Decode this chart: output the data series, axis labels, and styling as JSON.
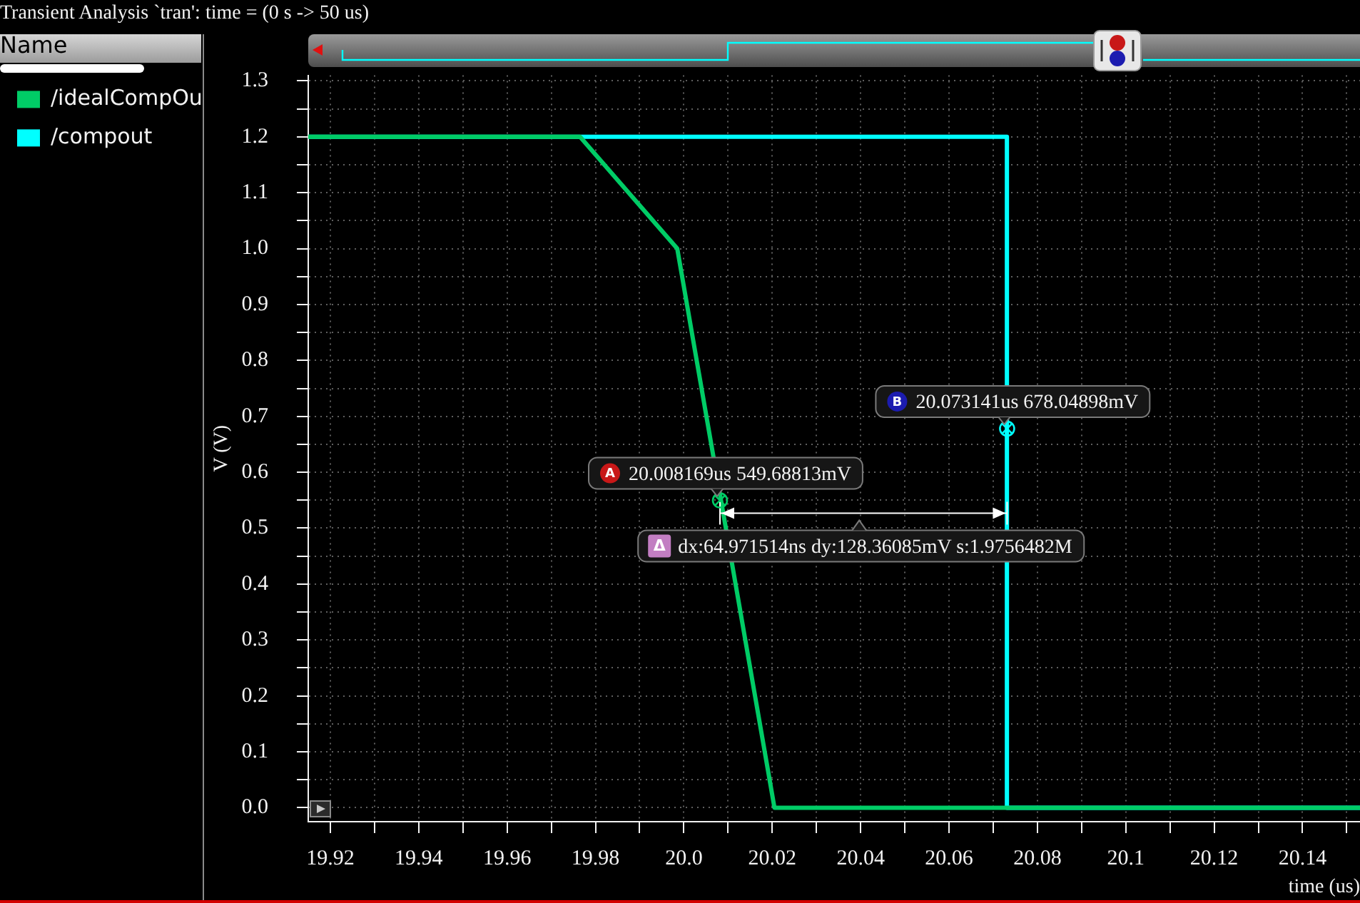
{
  "chart_data": {
    "type": "line",
    "title": "Transient Analysis `tran': time = (0 s -> 50 us)",
    "xlabel": "time (us)",
    "ylabel": "V (V)",
    "legend_title": "Name",
    "legend": "left",
    "grid": true,
    "series": [
      {
        "name": "/idealCompOu",
        "color": "#00cc66",
        "x": [
          19.915,
          19.9765,
          19.9985,
          20.0205,
          20.153
        ],
        "values": [
          1.2,
          1.2,
          1.0,
          0,
          0
        ]
      },
      {
        "name": "/compout",
        "color": "#00ffff",
        "x": [
          19.915,
          20.0731,
          20.0731,
          20.153
        ],
        "values": [
          1.2,
          1.2,
          0,
          0
        ]
      }
    ],
    "xlim": [
      19.915,
      20.153
    ],
    "xticks": [
      19.92,
      {
        "value": 19.93,
        "label": null
      },
      19.94,
      {
        "value": 19.95,
        "label": null
      },
      19.96,
      {
        "value": 19.97,
        "label": null
      },
      19.98,
      {
        "value": 19.99,
        "label": null
      },
      {
        "value": 20,
        "label": "20.0"
      },
      {
        "value": 20.01,
        "label": null
      },
      20.02,
      {
        "value": 20.03,
        "label": null
      },
      20.04,
      {
        "value": 20.05,
        "label": null
      },
      20.06,
      {
        "value": 20.07,
        "label": null
      },
      20.08,
      {
        "value": 20.09,
        "label": null
      },
      20.1,
      {
        "value": 20.11,
        "label": null
      },
      20.12,
      {
        "value": 20.13,
        "label": null
      },
      20.14,
      {
        "value": 20.15,
        "label": null
      }
    ],
    "ylim": [
      -0.025,
      1.31
    ],
    "yticks": [
      {
        "value": 0,
        "label": "0.0"
      },
      {
        "value": 0.05,
        "label": null
      },
      0.1,
      {
        "value": 0.15,
        "label": null
      },
      0.2,
      {
        "value": 0.25,
        "label": null
      },
      0.3,
      {
        "value": 0.35,
        "label": null
      },
      0.4,
      {
        "value": 0.45,
        "label": null
      },
      0.5,
      {
        "value": 0.55,
        "label": null
      },
      0.6,
      {
        "value": 0.65,
        "label": null
      },
      0.7,
      {
        "value": 0.75,
        "label": null
      },
      0.8,
      {
        "value": 0.85,
        "label": null
      },
      0.9,
      {
        "value": 0.95,
        "label": null
      },
      {
        "value": 1,
        "label": "1.0"
      },
      {
        "value": 1.05,
        "label": null
      },
      1.1,
      {
        "value": 1.15,
        "label": null
      },
      1.2,
      {
        "value": 1.25,
        "label": null
      },
      1.3
    ],
    "annotations": [
      {
        "text": "A 20.008169us 549.68813mV",
        "x": 20.008169,
        "y": 0.54968813
      },
      {
        "text": "B 20.073141us 678.04898mV",
        "x": 20.073141,
        "y": 0.67804898
      },
      "Δ dx:64.971514ns dy:128.36085mV s:1.9756482M"
    ]
  }
}
